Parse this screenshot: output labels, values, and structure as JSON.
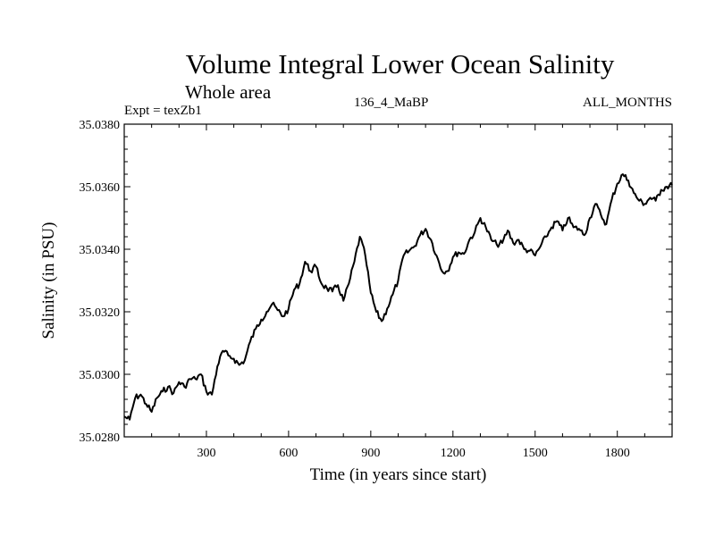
{
  "header": {
    "title": "Volume Integral Lower Ocean Salinity",
    "subtitle": "Whole area",
    "left_label": "Expt = texZb1",
    "center_label": "136_4_MaBP",
    "right_label": "ALL_MONTHS"
  },
  "chart_data": {
    "type": "line",
    "title": "Volume Integral Lower Ocean Salinity",
    "subtitle": "Whole area",
    "xlabel": "Time (in years since start)",
    "ylabel": "Salinity (in PSU)",
    "xlim": [
      0,
      2000
    ],
    "ylim": [
      35.028,
      35.038
    ],
    "x_ticks": [
      300,
      600,
      900,
      1200,
      1500,
      1800
    ],
    "x_tick_labels": [
      "300",
      "600",
      "900",
      "1200",
      "1500",
      "1800"
    ],
    "y_ticks": [
      35.028,
      35.03,
      35.032,
      35.034,
      35.036,
      35.038
    ],
    "y_tick_labels": [
      "35.0280",
      "35.0300",
      "35.0320",
      "35.0340",
      "35.0360",
      "35.0380"
    ],
    "grid": false,
    "legend": "none",
    "series": [
      {
        "name": "Salinity",
        "color": "#000000",
        "x": [
          0,
          20,
          40,
          60,
          80,
          100,
          120,
          140,
          160,
          180,
          200,
          220,
          240,
          260,
          280,
          300,
          320,
          340,
          360,
          380,
          400,
          420,
          440,
          460,
          480,
          500,
          520,
          540,
          560,
          580,
          600,
          620,
          640,
          660,
          680,
          700,
          720,
          740,
          760,
          780,
          800,
          820,
          840,
          860,
          880,
          900,
          920,
          940,
          960,
          980,
          1000,
          1020,
          1040,
          1060,
          1080,
          1100,
          1120,
          1140,
          1160,
          1180,
          1200,
          1220,
          1240,
          1260,
          1280,
          1300,
          1320,
          1340,
          1360,
          1380,
          1400,
          1420,
          1440,
          1460,
          1480,
          1500,
          1520,
          1540,
          1560,
          1580,
          1600,
          1620,
          1640,
          1660,
          1680,
          1700,
          1720,
          1740,
          1760,
          1780,
          1800,
          1820,
          1840,
          1860,
          1880,
          1900,
          1920,
          1940,
          1960,
          1980,
          2000
        ],
        "values": [
          35.02865,
          35.02855,
          35.02925,
          35.02935,
          35.02905,
          35.0288,
          35.02925,
          35.02945,
          35.0296,
          35.0294,
          35.02975,
          35.0296,
          35.02985,
          35.02985,
          35.03,
          35.02945,
          35.02935,
          35.03025,
          35.03075,
          35.0306,
          35.0305,
          35.0303,
          35.03045,
          35.03105,
          35.03145,
          35.03175,
          35.032,
          35.03225,
          35.03205,
          35.03185,
          35.0321,
          35.0327,
          35.0329,
          35.0336,
          35.0333,
          35.03345,
          35.0329,
          35.03275,
          35.03265,
          35.03285,
          35.03235,
          35.0329,
          35.0336,
          35.0344,
          35.0338,
          35.0326,
          35.032,
          35.0317,
          35.0321,
          35.03255,
          35.033,
          35.0338,
          35.03395,
          35.0341,
          35.03445,
          35.03465,
          35.0343,
          35.0338,
          35.0333,
          35.0333,
          35.03375,
          35.0339,
          35.03385,
          35.0343,
          35.03455,
          35.035,
          35.0347,
          35.0343,
          35.03415,
          35.0342,
          35.0346,
          35.0342,
          35.0343,
          35.034,
          35.03395,
          35.0338,
          35.0341,
          35.0344,
          35.0347,
          35.0349,
          35.0346,
          35.035,
          35.0347,
          35.03465,
          35.03445,
          35.035,
          35.03545,
          35.0351,
          35.0348,
          35.0356,
          35.0361,
          35.0364,
          35.0362,
          35.0358,
          35.03555,
          35.03545,
          35.03565,
          35.03555,
          35.0359,
          35.036,
          35.03605
        ]
      }
    ]
  }
}
